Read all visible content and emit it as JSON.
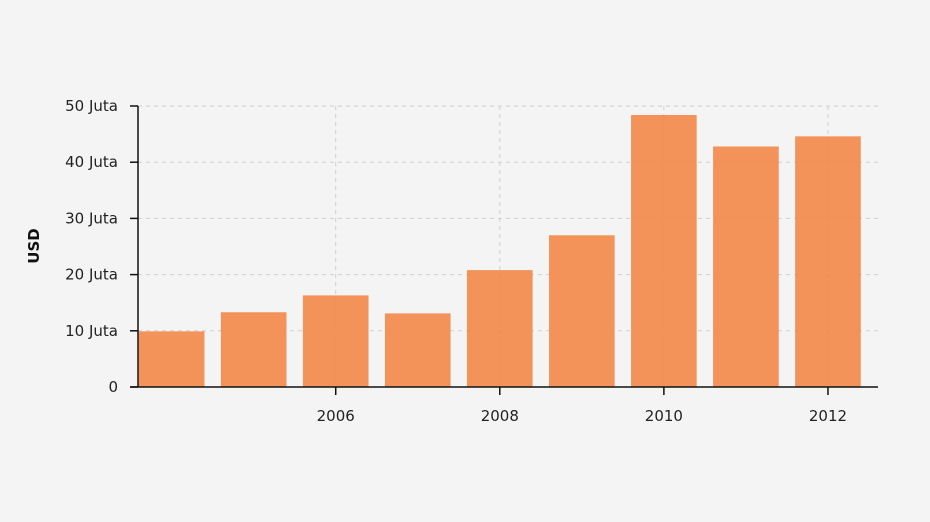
{
  "chart_data": {
    "type": "bar",
    "title": "",
    "xlabel": "",
    "ylabel": "USD",
    "categories": [
      2004,
      2005,
      2006,
      2007,
      2008,
      2009,
      2010,
      2011,
      2012
    ],
    "values": [
      9900000,
      13300000,
      16300000,
      13100000,
      20800000,
      27000000,
      48400000,
      42800000,
      44600000
    ],
    "x_ticks": [
      2006,
      2008,
      2010,
      2012
    ],
    "x_tick_labels": [
      "2006",
      "2008",
      "2010",
      "2012"
    ],
    "y_ticks": [
      0,
      10000000,
      20000000,
      30000000,
      40000000,
      50000000
    ],
    "y_tick_labels": [
      "0",
      "10 Juta",
      "20 Juta",
      "30 Juta",
      "40 Juta",
      "50 Juta"
    ],
    "ylim": [
      0,
      50000000
    ],
    "grid": true,
    "bar_color": "#f28a4c",
    "legend": "none"
  }
}
